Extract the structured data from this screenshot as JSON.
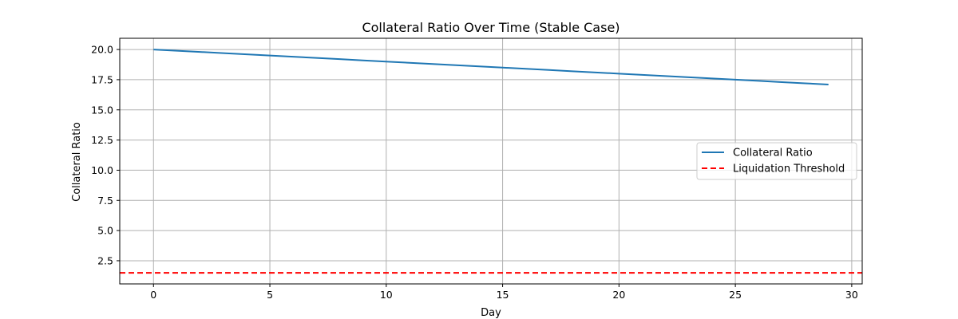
{
  "chart_data": {
    "type": "line",
    "title": "Collateral Ratio Over Time (Stable Case)",
    "xlabel": "Day",
    "ylabel": "Collateral Ratio",
    "xlim": [
      -1.45,
      30.45
    ],
    "ylim": [
      0.58,
      20.93
    ],
    "xticks": [
      0,
      5,
      10,
      15,
      20,
      25,
      30
    ],
    "yticks": [
      2.5,
      5.0,
      7.5,
      10.0,
      12.5,
      15.0,
      17.5,
      20.0
    ],
    "grid": true,
    "legend_position": "center-right",
    "series": [
      {
        "name": "Collateral Ratio",
        "style": "solid",
        "color": "#1f77b4",
        "x": [
          0,
          1,
          2,
          3,
          4,
          5,
          6,
          7,
          8,
          9,
          10,
          11,
          12,
          13,
          14,
          15,
          16,
          17,
          18,
          19,
          20,
          21,
          22,
          23,
          24,
          25,
          26,
          27,
          28,
          29
        ],
        "y": [
          20.0,
          19.9,
          19.8,
          19.7,
          19.6,
          19.5,
          19.4,
          19.3,
          19.2,
          19.1,
          19.0,
          18.9,
          18.8,
          18.7,
          18.6,
          18.5,
          18.4,
          18.3,
          18.2,
          18.1,
          18.0,
          17.9,
          17.8,
          17.7,
          17.6,
          17.5,
          17.4,
          17.3,
          17.2,
          17.1
        ]
      },
      {
        "name": "Liquidation Threshold",
        "style": "dashed",
        "color": "#ff0000",
        "type": "hline",
        "y": 1.5
      }
    ]
  }
}
